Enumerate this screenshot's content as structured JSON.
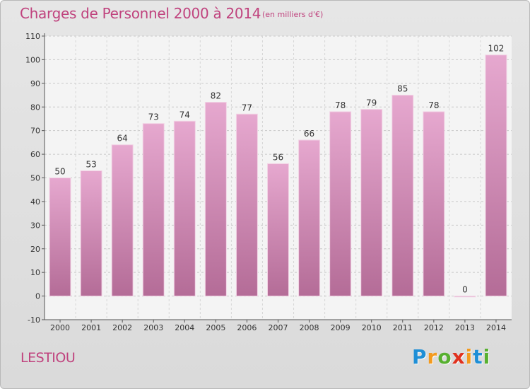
{
  "title": "Charges de Personnel 2000 à 2014",
  "subtitle": "(en milliers d'€)",
  "commune": "LESTIOU",
  "logo": {
    "letters": [
      "P",
      "r",
      "o",
      "x",
      "i",
      "t",
      "i"
    ],
    "colors": [
      "#1f8fd6",
      "#f39a1e",
      "#57b030",
      "#e0321f",
      "#f39a1e",
      "#1f8fd6",
      "#57b030"
    ]
  },
  "chart_data": {
    "type": "bar",
    "title": "Charges de Personnel 2000 à 2014",
    "subtitle": "(en milliers d'€)",
    "categories": [
      "2000",
      "2001",
      "2002",
      "2003",
      "2004",
      "2005",
      "2006",
      "2007",
      "2008",
      "2009",
      "2010",
      "2011",
      "2012",
      "2013",
      "2014"
    ],
    "values": [
      50,
      53,
      64,
      73,
      74,
      82,
      77,
      56,
      66,
      78,
      79,
      85,
      78,
      0,
      102
    ],
    "ylim": [
      -10,
      110
    ],
    "yticks": [
      -10,
      0,
      10,
      20,
      30,
      40,
      50,
      60,
      70,
      80,
      90,
      100,
      110
    ],
    "grid": true,
    "bar_color": "#d68cb8"
  }
}
